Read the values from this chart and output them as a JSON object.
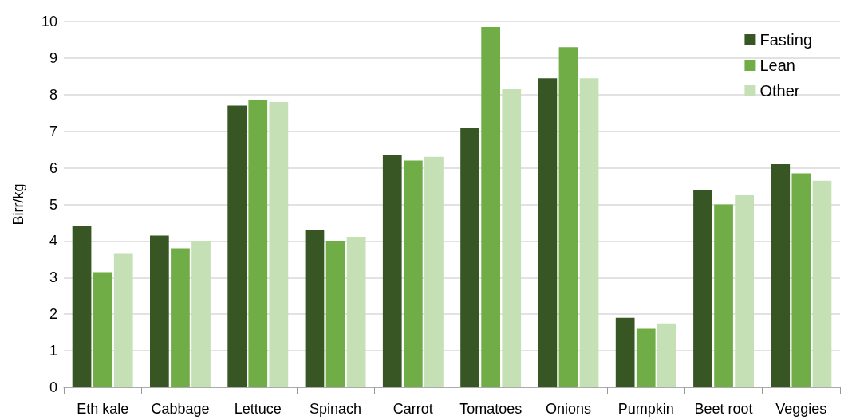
{
  "chart_data": {
    "type": "bar",
    "ylabel": "Birr/kg",
    "categories": [
      "Eth kale",
      "Cabbage",
      "Lettuce",
      "Spinach",
      "Carrot",
      "Tomatoes",
      "Onions",
      "Pumpkin",
      "Beet root",
      "Veggies"
    ],
    "series": [
      {
        "name": "Fasting",
        "color": "#375623",
        "values": [
          4.4,
          4.15,
          7.7,
          4.3,
          6.35,
          7.1,
          8.45,
          1.9,
          5.4,
          6.1
        ]
      },
      {
        "name": "Lean",
        "color": "#70ad47",
        "values": [
          3.15,
          3.8,
          7.85,
          4.0,
          6.2,
          9.85,
          9.3,
          1.6,
          5.0,
          5.85
        ]
      },
      {
        "name": "Other",
        "color": "#c5e0b4",
        "values": [
          3.65,
          4.0,
          7.8,
          4.1,
          6.3,
          8.15,
          8.45,
          1.75,
          5.25,
          5.65
        ]
      }
    ],
    "ylim": [
      0,
      10
    ],
    "yticks": [
      0,
      1,
      2,
      3,
      4,
      5,
      6,
      7,
      8,
      9,
      10
    ],
    "grid": "y",
    "legend": "top right"
  }
}
